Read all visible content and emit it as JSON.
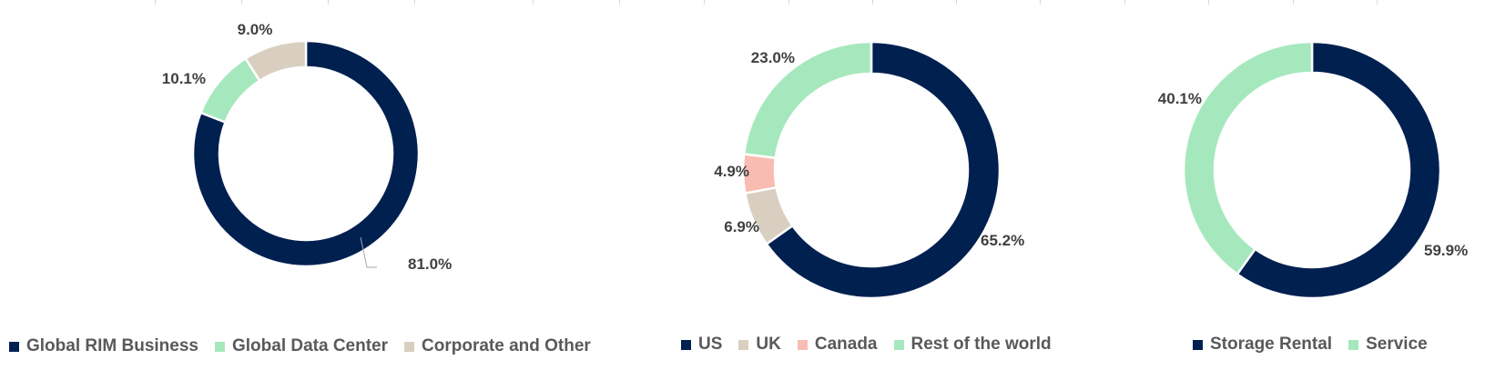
{
  "chart_data": [
    {
      "type": "pie",
      "slices": [
        {
          "label": "Global RIM Business",
          "value": 81.0,
          "display": "81.0%",
          "color": "#002050"
        },
        {
          "label": "Global Data Center",
          "value": 10.1,
          "display": "10.1%",
          "color": "#a6e8bd"
        },
        {
          "label": "Corporate and Other",
          "value": 9.0,
          "display": "9.0%",
          "color": "#d9cfc0"
        }
      ],
      "legend_position": "bottom"
    },
    {
      "type": "pie",
      "slices": [
        {
          "label": "US",
          "value": 65.2,
          "display": "65.2%",
          "color": "#002050"
        },
        {
          "label": "UK",
          "value": 6.9,
          "display": "6.9%",
          "color": "#d9cfc0"
        },
        {
          "label": "Canada",
          "value": 4.9,
          "display": "4.9%",
          "color": "#f8bcb2"
        },
        {
          "label": "Rest of the world",
          "value": 23.0,
          "display": "23.0%",
          "color": "#a6e8bd"
        }
      ],
      "legend_position": "bottom"
    },
    {
      "type": "pie",
      "slices": [
        {
          "label": "Storage Rental",
          "value": 59.9,
          "display": "59.9%",
          "color": "#002050"
        },
        {
          "label": "Service",
          "value": 40.1,
          "display": "40.1%",
          "color": "#a6e8bd"
        }
      ],
      "legend_position": "bottom"
    }
  ]
}
